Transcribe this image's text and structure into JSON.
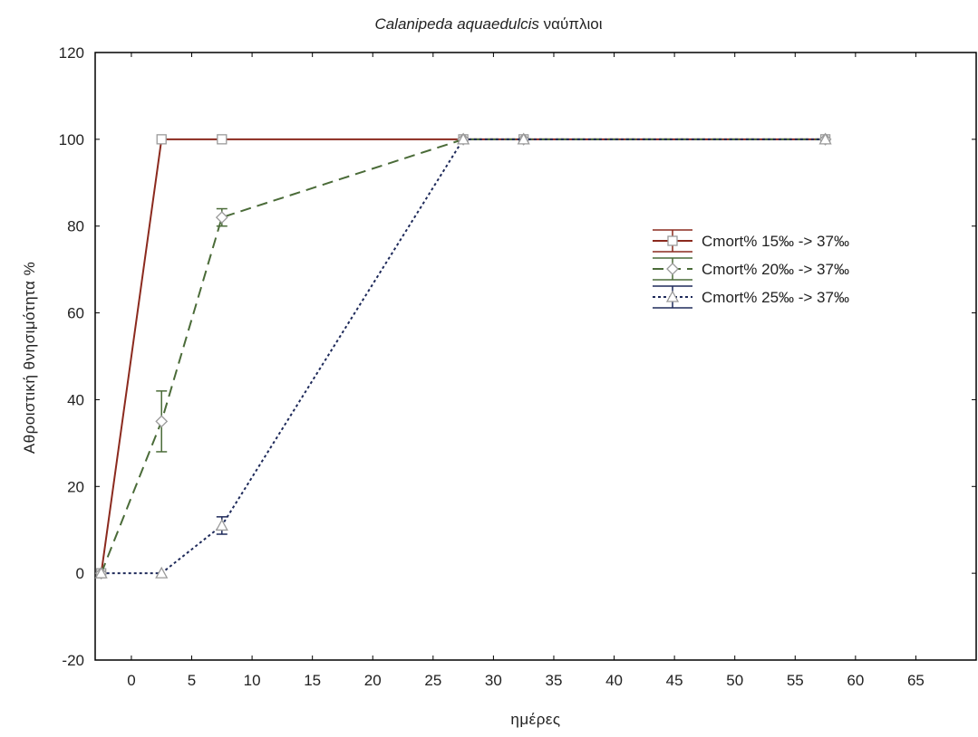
{
  "chart_data": {
    "type": "line",
    "title_italic": "Calanipeda aquaedulcis",
    "title_rest": " ναύπλιοι",
    "xlabel": "ημέρες",
    "ylabel": "Αθροιστική θνησιμότητα %",
    "xlim": [
      -3,
      70
    ],
    "ylim": [
      -20,
      120
    ],
    "xticks": [
      0,
      5,
      10,
      15,
      20,
      25,
      30,
      35,
      40,
      45,
      50,
      55,
      60,
      65
    ],
    "yticks": [
      -20,
      0,
      20,
      40,
      60,
      80,
      100,
      120
    ],
    "legend_position": "right",
    "series": [
      {
        "name": "Cmort% 15‰ -> 37‰",
        "color": "#8b2a1e",
        "dash": "solid",
        "marker": "square",
        "points": [
          [
            -2.5,
            0
          ],
          [
            2.5,
            100
          ],
          [
            7.5,
            100
          ],
          [
            27.5,
            100
          ],
          [
            32.5,
            100
          ],
          [
            57.5,
            100
          ]
        ],
        "errors": [
          0,
          0,
          0,
          0,
          0,
          0
        ]
      },
      {
        "name": "Cmort% 20‰ -> 37‰",
        "color": "#4a6b38",
        "dash": "dashed",
        "marker": "diamond",
        "points": [
          [
            -2.5,
            0
          ],
          [
            2.5,
            35
          ],
          [
            7.5,
            82
          ],
          [
            27.5,
            100
          ],
          [
            32.5,
            100
          ],
          [
            57.5,
            100
          ]
        ],
        "errors": [
          0,
          7,
          2,
          0,
          0,
          0
        ]
      },
      {
        "name": "Cmort% 25‰ -> 37‰",
        "color": "#1e2a5a",
        "dash": "dotted",
        "marker": "triangle",
        "points": [
          [
            -2.5,
            0
          ],
          [
            2.5,
            0
          ],
          [
            7.5,
            11
          ],
          [
            27.5,
            100
          ],
          [
            32.5,
            100
          ],
          [
            57.5,
            100
          ]
        ],
        "errors": [
          0,
          0,
          2,
          0,
          0,
          0
        ]
      }
    ]
  }
}
